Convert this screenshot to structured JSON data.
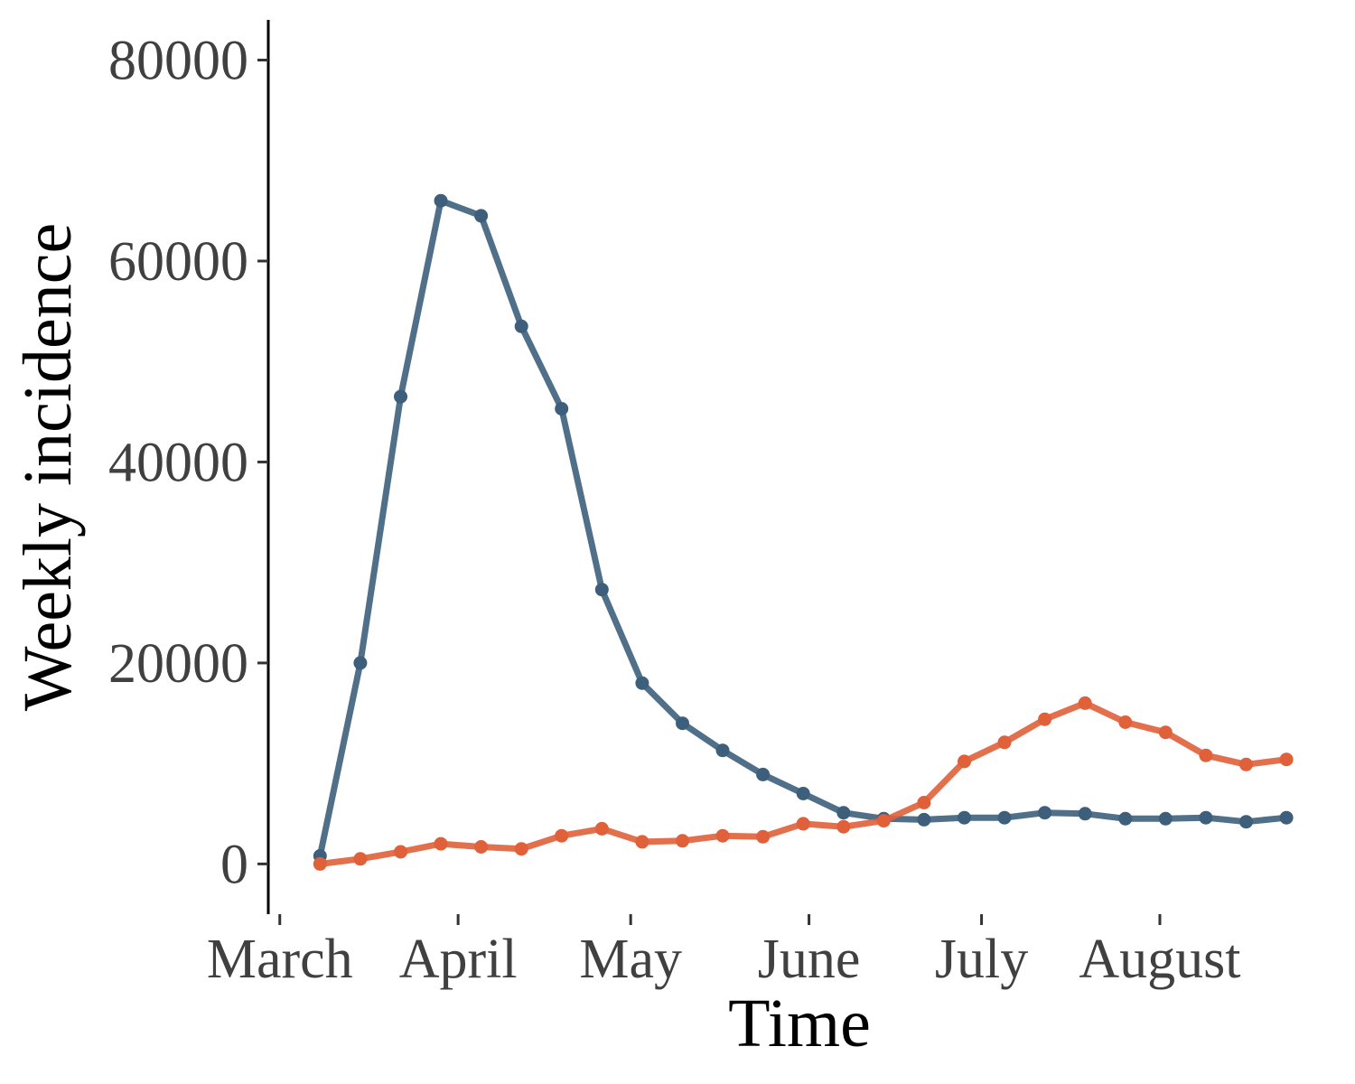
{
  "chart_data": {
    "type": "line",
    "xlabel": "Time",
    "ylabel": "Weekly incidence",
    "ylim": [
      -5000,
      84000
    ],
    "yticks": [
      0,
      20000,
      40000,
      60000,
      80000
    ],
    "x_axis": {
      "unit": "date",
      "range": [
        "2020-02-28",
        "2020-08-31"
      ],
      "tick_labels": [
        {
          "label": "March",
          "date": "2020-03-01"
        },
        {
          "label": "April",
          "date": "2020-04-01"
        },
        {
          "label": "May",
          "date": "2020-05-01"
        },
        {
          "label": "June",
          "date": "2020-06-01"
        },
        {
          "label": "July",
          "date": "2020-07-01"
        },
        {
          "label": "August",
          "date": "2020-08-01"
        }
      ]
    },
    "x": [
      "2020-03-08",
      "2020-03-15",
      "2020-03-22",
      "2020-03-29",
      "2020-04-05",
      "2020-04-12",
      "2020-04-19",
      "2020-04-26",
      "2020-05-03",
      "2020-05-10",
      "2020-05-17",
      "2020-05-24",
      "2020-05-31",
      "2020-06-07",
      "2020-06-14",
      "2020-06-21",
      "2020-06-28",
      "2020-07-05",
      "2020-07-12",
      "2020-07-19",
      "2020-07-26",
      "2020-08-02",
      "2020-08-09",
      "2020-08-16",
      "2020-08-23"
    ],
    "series": [
      {
        "color": "#3D5F7C",
        "values": [
          800,
          20000,
          46500,
          66000,
          64500,
          53500,
          45300,
          27300,
          18000,
          14000,
          11300,
          8900,
          7000,
          5100,
          4500,
          4400,
          4600,
          4600,
          5100,
          5000,
          4500,
          4500,
          4600,
          4200,
          4600
        ]
      },
      {
        "color": "#E0603A",
        "values": [
          0,
          500,
          1200,
          2000,
          1700,
          1500,
          2800,
          3500,
          2200,
          2300,
          2800,
          2700,
          4000,
          3700,
          4300,
          6100,
          10200,
          12100,
          14400,
          16000,
          14100,
          13100,
          10800,
          9900,
          10400
        ]
      }
    ],
    "grid": false,
    "legend": "none"
  }
}
